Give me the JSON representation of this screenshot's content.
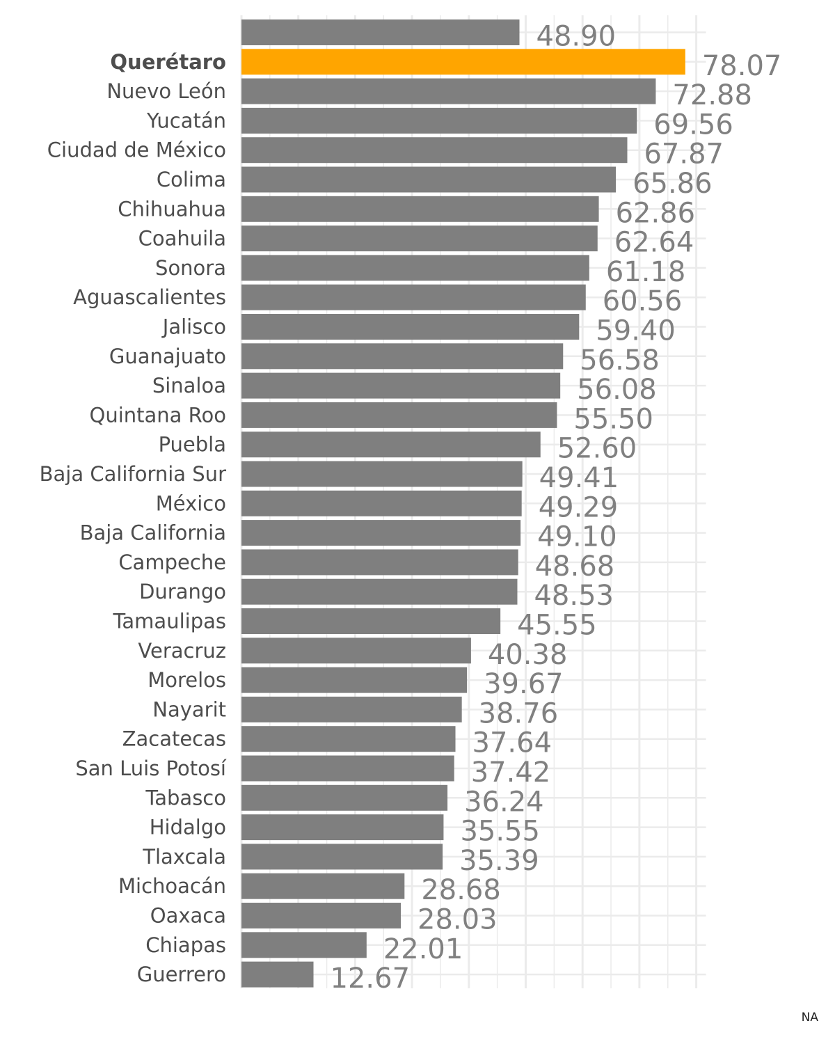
{
  "chart_data": {
    "type": "bar",
    "orientation": "horizontal",
    "title": "",
    "xlabel": "",
    "ylabel": "",
    "xlim": [
      0,
      80
    ],
    "grid": true,
    "legend": "none",
    "categories": [
      "",
      "Querétaro",
      "Nuevo León",
      "Yucatán",
      "Ciudad de México",
      "Colima",
      "Chihuahua",
      "Coahuila",
      "Sonora",
      "Aguascalientes",
      "Jalisco",
      "Guanajuato",
      "Sinaloa",
      "Quintana Roo",
      "Puebla",
      "Baja California Sur",
      "México",
      "Baja California",
      "Campeche",
      "Durango",
      "Tamaulipas",
      "Veracruz",
      "Morelos",
      "Nayarit",
      "Zacatecas",
      "San Luis Potosí",
      "Tabasco",
      "Hidalgo",
      "Tlaxcala",
      "Michoacán",
      "Oaxaca",
      "Chiapas",
      "Guerrero"
    ],
    "values": [
      48.9,
      78.07,
      72.88,
      69.56,
      67.87,
      65.86,
      62.86,
      62.64,
      61.18,
      60.56,
      59.4,
      56.58,
      56.08,
      55.5,
      52.6,
      49.41,
      49.29,
      49.1,
      48.68,
      48.53,
      45.55,
      40.38,
      39.67,
      38.76,
      37.64,
      37.42,
      36.24,
      35.55,
      35.39,
      28.68,
      28.03,
      22.01,
      12.67
    ],
    "value_labels": [
      "48.90",
      "78.07",
      "72.88",
      "69.56",
      "67.87",
      "65.86",
      "62.86",
      "62.64",
      "61.18",
      "60.56",
      "59.40",
      "56.58",
      "56.08",
      "55.50",
      "52.60",
      "49.41",
      "49.29",
      "49.10",
      "48.68",
      "48.53",
      "45.55",
      "40.38",
      "39.67",
      "38.76",
      "37.64",
      "37.42",
      "36.24",
      "35.55",
      "35.39",
      "28.68",
      "28.03",
      "22.01",
      "12.67"
    ],
    "highlight": "Querétaro",
    "colors": {
      "bar": "#7f7f7f",
      "highlight": "#FFA500",
      "label": "#4d4d4d",
      "value": "#808080",
      "grid": "#ebebeb"
    }
  },
  "caption": "NA"
}
